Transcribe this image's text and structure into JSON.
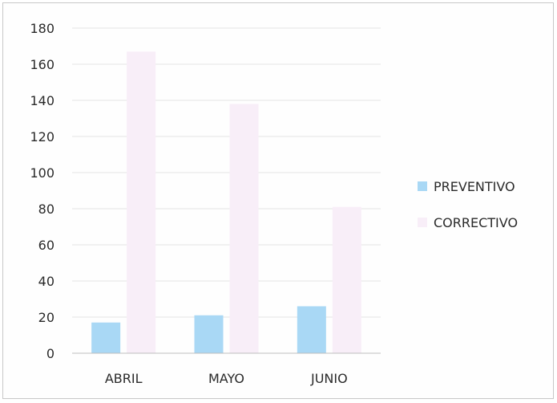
{
  "chart_data": {
    "type": "bar",
    "categories": [
      "ABRIL",
      "MAYO",
      "JUNIO"
    ],
    "series": [
      {
        "name": "PREVENTIVO",
        "values": [
          17,
          21,
          26
        ],
        "color": "#a9d8f5"
      },
      {
        "name": "CORRECTIVO",
        "values": [
          167,
          138,
          81
        ],
        "color": "#f8eef8"
      }
    ],
    "yticks": [
      0,
      20,
      40,
      60,
      80,
      100,
      120,
      140,
      160,
      180
    ],
    "ylim": [
      0,
      180
    ],
    "grid": true,
    "legend_position": "right"
  }
}
